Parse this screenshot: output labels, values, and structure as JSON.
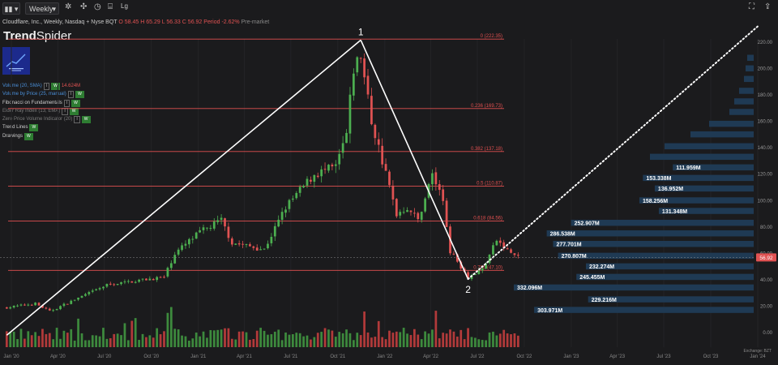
{
  "toolbar": {
    "interval": "Weekly",
    "save_label": "Save Chart"
  },
  "symbol": {
    "name": "Cloudflare, Inc., Weekly, Nasdaq + Nyse BQT",
    "open": "O 58.45",
    "high": "H 65.29",
    "low": "L 56.33",
    "close": "C 56.92",
    "period": "Period -2.62%",
    "session": "Pre-market"
  },
  "brand": {
    "first": "Trend",
    "second": "Spider"
  },
  "indicators": [
    {
      "label": "Volume (20, SMA)",
      "value": "14.624M",
      "style": "blue",
      "chips": [
        "I",
        "W"
      ]
    },
    {
      "label": "Volume by Price (25, manual)",
      "value": "",
      "style": "blue",
      "chips": [
        "I",
        "W"
      ]
    },
    {
      "label": "Fibonacci on Fundamentals",
      "value": "",
      "style": "white",
      "chips": [
        "I",
        "W"
      ]
    },
    {
      "label": "Elder Ray Index (13, EMA)",
      "value": "",
      "style": "dim",
      "chips": [
        "I",
        "W"
      ]
    },
    {
      "label": "Zero Price Volume Indicator (20)",
      "value": "",
      "style": "dim",
      "chips": [
        "I",
        "W"
      ]
    },
    {
      "label": "Trend Lines",
      "value": "",
      "style": "white",
      "chips": [
        "W"
      ]
    },
    {
      "label": "Drawings",
      "value": "",
      "style": "white",
      "chips": [
        "W"
      ]
    }
  ],
  "colors": {
    "bull": "#4caf50",
    "bear": "#e05252",
    "fib": "#e15050",
    "vp": "#1f3a54",
    "price_tag": "#e05252",
    "background": "#1b1b1d"
  },
  "chart_data": {
    "type": "candlestick",
    "x_ticks": [
      "Jan '20",
      "Apr '20",
      "Jul '20",
      "Oct '20",
      "Jan '21",
      "Apr '21",
      "Jul '21",
      "Oct '21",
      "Jan '22",
      "Apr '22",
      "Jul '22",
      "Oct '22",
      "Jan '23",
      "Apr '23",
      "Jul '23",
      "Oct '23",
      "Jan '24"
    ],
    "y_ticks": [
      0,
      20,
      40,
      60,
      80,
      100,
      120,
      140,
      160,
      180,
      200,
      220
    ],
    "y_tick_labels": [
      "0.00",
      "20.00",
      "40.00",
      "60.00",
      "80.00",
      "100.00",
      "120.00",
      "140.00",
      "160.00",
      "180.00",
      "200.00",
      "220.00"
    ],
    "ylim": [
      -12,
      232
    ],
    "last_price": "56.92",
    "exchange": "Exchange: BZT",
    "fib_levels": [
      {
        "label": "0 (222.35)",
        "value": 222.35
      },
      {
        "label": "0.236 (169.73)",
        "value": 169.73
      },
      {
        "label": "0.382 (137.18)",
        "value": 137.18
      },
      {
        "label": "0.5 (110.87)",
        "value": 110.87
      },
      {
        "label": "0.618 (84.56)",
        "value": 84.56
      },
      {
        "label": "0.786 (47.10)",
        "value": 47.1
      }
    ],
    "swing_points": [
      {
        "label": "1",
        "date": "2021-11-15",
        "value": 221.6
      },
      {
        "label": "2",
        "date": "2022-06-13",
        "value": 40.5
      }
    ],
    "trend_lines": [
      {
        "from": {
          "date": "2019-12-23",
          "value": -2
        },
        "to": {
          "date": "2021-11-15",
          "value": 221.6
        },
        "style": "solid"
      },
      {
        "from": {
          "date": "2021-11-15",
          "value": 221.6
        },
        "to": {
          "date": "2022-06-13",
          "value": 40.5
        },
        "style": "solid"
      },
      {
        "from": {
          "date": "2022-06-13",
          "value": 40.5
        },
        "to": {
          "date": "2024-01-01",
          "value": 232
        },
        "style": "dotted"
      }
    ],
    "volume_profile": [
      {
        "label": "303.971M",
        "value": 303.971,
        "price": 17
      },
      {
        "label": "229.216M",
        "value": 229.216,
        "price": 25
      },
      {
        "label": "332.096M",
        "value": 332.096,
        "price": 34
      },
      {
        "label": "245.455M",
        "value": 245.455,
        "price": 42
      },
      {
        "label": "232.274M",
        "value": 232.274,
        "price": 50
      },
      {
        "label": "270.807M",
        "value": 270.807,
        "price": 58
      },
      {
        "label": "277.701M",
        "value": 277.701,
        "price": 67
      },
      {
        "label": "286.538M",
        "value": 286.538,
        "price": 75
      },
      {
        "label": "252.907M",
        "value": 252.907,
        "price": 83
      },
      {
        "label": "131.348M",
        "value": 131.348,
        "price": 92
      },
      {
        "label": "158.256M",
        "value": 158.256,
        "price": 100
      },
      {
        "label": "136.952M",
        "value": 136.952,
        "price": 109
      },
      {
        "label": "153.338M",
        "value": 153.338,
        "price": 117
      },
      {
        "label": "111.959M",
        "value": 111.959,
        "price": 125
      }
    ],
    "price_anchors": [
      {
        "date": "2019-12-23",
        "value": 19
      },
      {
        "date": "2020-02-17",
        "value": 22
      },
      {
        "date": "2020-03-16",
        "value": 16
      },
      {
        "date": "2020-05-04",
        "value": 25
      },
      {
        "date": "2020-07-06",
        "value": 36
      },
      {
        "date": "2020-09-14",
        "value": 40
      },
      {
        "date": "2020-10-26",
        "value": 42
      },
      {
        "date": "2020-11-16",
        "value": 60
      },
      {
        "date": "2021-01-04",
        "value": 76
      },
      {
        "date": "2021-02-15",
        "value": 85
      },
      {
        "date": "2021-03-08",
        "value": 68
      },
      {
        "date": "2021-05-10",
        "value": 63
      },
      {
        "date": "2021-06-21",
        "value": 95
      },
      {
        "date": "2021-08-16",
        "value": 120
      },
      {
        "date": "2021-09-27",
        "value": 125
      },
      {
        "date": "2021-10-18",
        "value": 150
      },
      {
        "date": "2021-11-01",
        "value": 200
      },
      {
        "date": "2021-11-15",
        "value": 210
      },
      {
        "date": "2021-12-06",
        "value": 160
      },
      {
        "date": "2021-12-27",
        "value": 130
      },
      {
        "date": "2022-01-24",
        "value": 90
      },
      {
        "date": "2022-02-14",
        "value": 95
      },
      {
        "date": "2022-03-07",
        "value": 85
      },
      {
        "date": "2022-04-04",
        "value": 120
      },
      {
        "date": "2022-04-25",
        "value": 100
      },
      {
        "date": "2022-05-09",
        "value": 62
      },
      {
        "date": "2022-06-13",
        "value": 42
      },
      {
        "date": "2022-07-11",
        "value": 48
      },
      {
        "date": "2022-08-08",
        "value": 70
      },
      {
        "date": "2022-08-29",
        "value": 62
      },
      {
        "date": "2022-09-19",
        "value": 57
      }
    ]
  }
}
